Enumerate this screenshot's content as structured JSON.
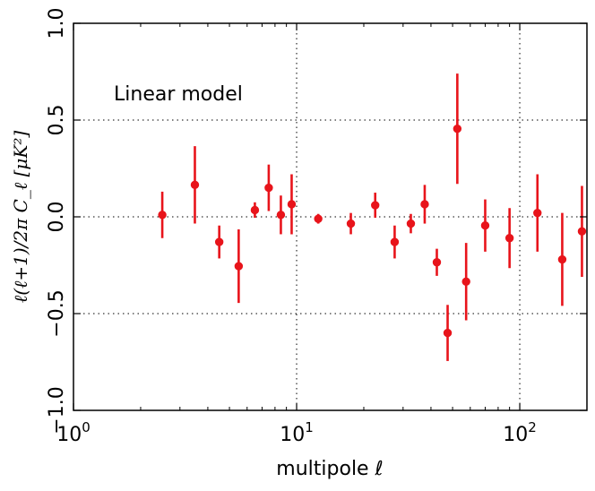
{
  "chart_data": {
    "type": "scatter",
    "title": "",
    "annotation": "Linear model",
    "xlabel": "multipole ℓ",
    "ylabel": "ℓ(ℓ+1)/2π C_ℓ  [μK²]",
    "xscale": "log",
    "xlim": [
      1,
      200
    ],
    "ylim": [
      -1.0,
      1.0
    ],
    "grid": "dotted at major ticks",
    "marker_color": "#e8141b",
    "xticks": [
      {
        "value": 1,
        "base": "10",
        "exp": "0"
      },
      {
        "value": 10,
        "base": "10",
        "exp": "1"
      },
      {
        "value": 100,
        "base": "10",
        "exp": "2"
      }
    ],
    "yticks": [
      {
        "value": -1.0,
        "label": "−1.0"
      },
      {
        "value": -0.5,
        "label": "−0.5"
      },
      {
        "value": 0.0,
        "label": "0.0"
      },
      {
        "value": 0.5,
        "label": "0.5"
      },
      {
        "value": 1.0,
        "label": "1.0"
      }
    ],
    "series": [
      {
        "name": "Linear model",
        "points": [
          {
            "x": 2.5,
            "y": 0.01,
            "err": 0.12
          },
          {
            "x": 3.5,
            "y": 0.165,
            "err": 0.2
          },
          {
            "x": 4.5,
            "y": -0.13,
            "err": 0.085
          },
          {
            "x": 5.5,
            "y": -0.255,
            "err": 0.19
          },
          {
            "x": 6.5,
            "y": 0.035,
            "err": 0.04
          },
          {
            "x": 7.5,
            "y": 0.15,
            "err": 0.12
          },
          {
            "x": 8.5,
            "y": 0.01,
            "err": 0.1
          },
          {
            "x": 9.5,
            "y": 0.065,
            "err": 0.155
          },
          {
            "x": 12.5,
            "y": -0.01,
            "err": 0.025
          },
          {
            "x": 17.5,
            "y": -0.035,
            "err": 0.055
          },
          {
            "x": 22.5,
            "y": 0.06,
            "err": 0.065
          },
          {
            "x": 27.5,
            "y": -0.13,
            "err": 0.085
          },
          {
            "x": 32.5,
            "y": -0.035,
            "err": 0.05
          },
          {
            "x": 37.5,
            "y": 0.065,
            "err": 0.1
          },
          {
            "x": 42.5,
            "y": -0.235,
            "err": 0.07
          },
          {
            "x": 47.5,
            "y": -0.6,
            "err": 0.145
          },
          {
            "x": 52.5,
            "y": 0.455,
            "err": 0.285
          },
          {
            "x": 57.5,
            "y": -0.335,
            "err": 0.2
          },
          {
            "x": 70,
            "y": -0.045,
            "err": 0.135
          },
          {
            "x": 90,
            "y": -0.11,
            "err": 0.155
          },
          {
            "x": 120,
            "y": 0.02,
            "err": 0.2
          },
          {
            "x": 155,
            "y": -0.22,
            "err": 0.24
          },
          {
            "x": 190,
            "y": -0.075,
            "err": 0.235
          }
        ]
      }
    ]
  }
}
